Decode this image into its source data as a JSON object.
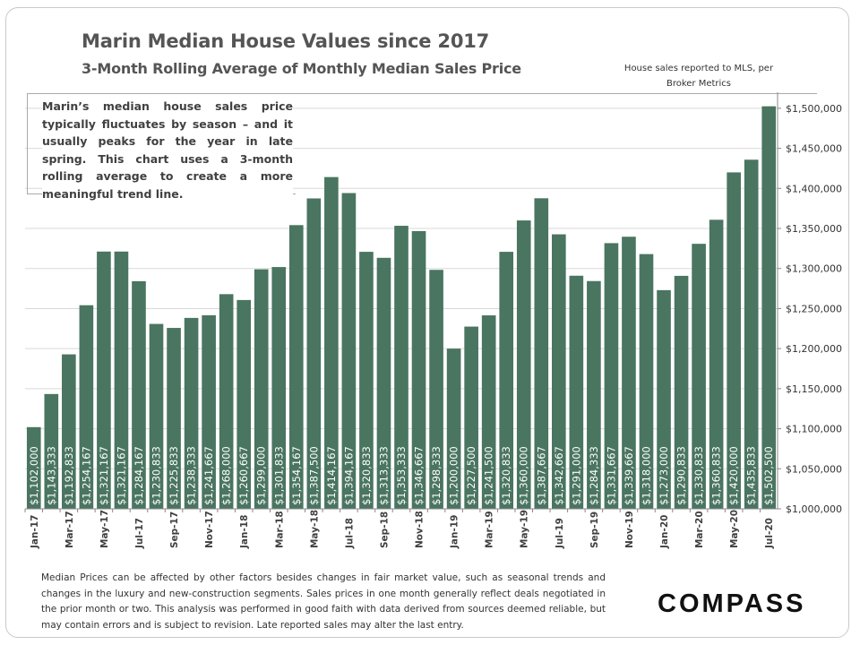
{
  "title": "Marin Median House Values since 2017",
  "subtitle": "3-Month Rolling Average of Monthly Median Sales Price",
  "source_note": "House sales reported to MLS, per Broker Metrics",
  "note": "Marin’s median house sales price typically fluctuates by season – and it usually peaks for the year in late spring. This chart uses a 3-month rolling average to create a more meaningful trend line.",
  "footnote": "Median Prices can be affected by other factors besides changes in fair market value, such as seasonal trends and changes in the luxury and new-construction segments. Sales prices in one month generally reflect deals negotiated in the prior month or two. This analysis was performed in good faith with data derived from sources deemed reliable, but may contain errors and is subject to revision. Late reported sales may alter the last entry.",
  "logo": "COMPASS",
  "chart_data": {
    "type": "bar",
    "bar_color": "#4a7561",
    "label_color": "#ffffff",
    "ylim": [
      1000000,
      1520000
    ],
    "y_ticks": [
      1000000,
      1050000,
      1100000,
      1150000,
      1200000,
      1250000,
      1300000,
      1350000,
      1400000,
      1450000,
      1500000
    ],
    "y_tick_labels": [
      "$1,000,000",
      "$1,050,000",
      "$1,100,000",
      "$1,150,000",
      "$1,200,000",
      "$1,250,000",
      "$1,300,000",
      "$1,350,000",
      "$1,400,000",
      "$1,450,000",
      "$1,500,000"
    ],
    "grid": true,
    "categories": [
      "Jan-17",
      "Feb-17",
      "Mar-17",
      "Apr-17",
      "May-17",
      "Jun-17",
      "Jul-17",
      "Aug-17",
      "Sep-17",
      "Oct-17",
      "Nov-17",
      "Dec-17",
      "Jan-18",
      "Feb-18",
      "Mar-18",
      "Apr-18",
      "May-18",
      "Jun-18",
      "Jul-18",
      "Aug-18",
      "Sep-18",
      "Oct-18",
      "Nov-18",
      "Dec-18",
      "Jan-19",
      "Feb-19",
      "Mar-19",
      "Apr-19",
      "May-19",
      "Jun-19",
      "Jul-19",
      "Aug-19",
      "Sep-19",
      "Oct-19",
      "Nov-19",
      "Dec-19",
      "Jan-20",
      "Feb-20",
      "Mar-20",
      "Apr-20",
      "May-20",
      "Jun-20",
      "Jul-20"
    ],
    "x_tick_labels": [
      "Jan-17",
      "",
      "Mar-17",
      "",
      "May-17",
      "",
      "Jul-17",
      "",
      "Sep-17",
      "",
      "Nov-17",
      "",
      "Jan-18",
      "",
      "Mar-18",
      "",
      "May-18",
      "",
      "Jul-18",
      "",
      "Sep-18",
      "",
      "Nov-18",
      "",
      "Jan-19",
      "",
      "Mar-19",
      "",
      "May-19",
      "",
      "Jul-19",
      "",
      "Sep-19",
      "",
      "Nov-19",
      "",
      "Jan-20",
      "",
      "Mar-20",
      "",
      "May-20",
      "",
      "Jul-20"
    ],
    "values": [
      1102000,
      1143333,
      1192833,
      1254167,
      1321167,
      1321167,
      1284167,
      1230833,
      1225833,
      1238333,
      1241667,
      1268000,
      1260667,
      1299000,
      1301833,
      1354167,
      1387500,
      1414167,
      1394167,
      1320833,
      1313333,
      1353333,
      1346667,
      1298333,
      1200000,
      1227500,
      1241500,
      1320833,
      1360000,
      1387667,
      1342667,
      1291000,
      1284333,
      1331667,
      1339667,
      1318000,
      1273000,
      1290833,
      1330833,
      1360833,
      1420000,
      1435833,
      1502500
    ],
    "value_labels": [
      "$1,102,000",
      "$1,143,333",
      "$1,192,833",
      "$1,254,167",
      "$1,321,167",
      "$1,321,167",
      "$1,284,167",
      "$1,230,833",
      "$1,225,833",
      "$1,238,333",
      "$1,241,667",
      "$1,268,000",
      "$1,260,667",
      "$1,299,000",
      "$1,301,833",
      "$1,354,167",
      "$1,387,500",
      "$1,414,167",
      "$1,394,167",
      "$1,320,833",
      "$1,313,333",
      "$1,353,333",
      "$1,346,667",
      "$1,298,333",
      "$1,200,000",
      "$1,227,500",
      "$1,241,500",
      "$1,320,833",
      "$1,360,000",
      "$1,387,667",
      "$1,342,667",
      "$1,291,000",
      "$1,284,333",
      "$1,331,667",
      "$1,339,667",
      "$1,318,000",
      "$1,273,000",
      "$1,290,833",
      "$1,330,833",
      "$1,360,833",
      "$1,420,000",
      "$1,435,833",
      "$1,502,500"
    ]
  }
}
